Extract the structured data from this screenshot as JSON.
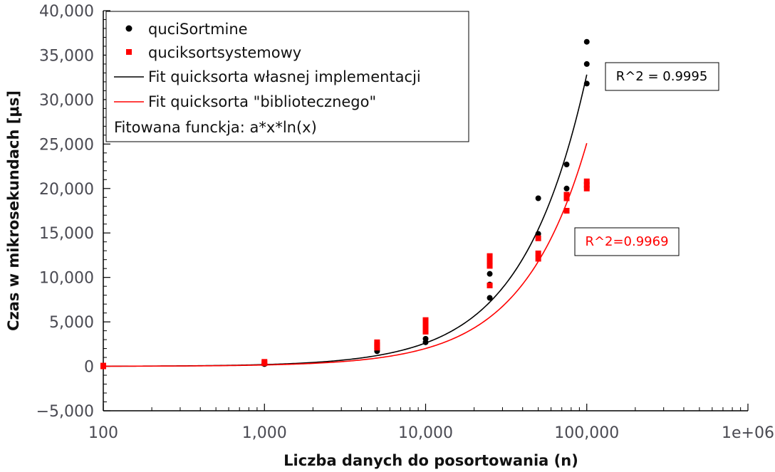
{
  "chart_data": {
    "type": "scatter",
    "x_scale": "log",
    "xlim": [
      100,
      1000000
    ],
    "ylim": [
      -5000,
      40000
    ],
    "xlabel": "Liczba danych do posortowania (n)",
    "ylabel": "Czas w mikrosekundach [μs]",
    "x_ticks": [
      {
        "value": 100,
        "label": "100"
      },
      {
        "value": 1000,
        "label": "1,000"
      },
      {
        "value": 10000,
        "label": "10,000"
      },
      {
        "value": 100000,
        "label": "100,000"
      },
      {
        "value": 1000000,
        "label": "1e+06"
      }
    ],
    "y_ticks": [
      {
        "value": -5000,
        "label": "−5,000"
      },
      {
        "value": 0,
        "label": "0"
      },
      {
        "value": 5000,
        "label": "5,000"
      },
      {
        "value": 10000,
        "label": "10,000"
      },
      {
        "value": 15000,
        "label": "15,000"
      },
      {
        "value": 20000,
        "label": "20,000"
      },
      {
        "value": 25000,
        "label": "25,000"
      },
      {
        "value": 30000,
        "label": "30,000"
      },
      {
        "value": 35000,
        "label": "35,000"
      },
      {
        "value": 40000,
        "label": "40,000"
      }
    ],
    "grid": false,
    "legend_position": "top-left",
    "series": [
      {
        "name": "quciSortmine",
        "kind": "points",
        "marker": "circle",
        "color": "#000000",
        "points": [
          [
            100,
            0
          ],
          [
            100,
            30
          ],
          [
            1000,
            250
          ],
          [
            1000,
            300
          ],
          [
            5000,
            1700
          ],
          [
            5000,
            1800
          ],
          [
            5000,
            2000
          ],
          [
            10000,
            2700
          ],
          [
            10000,
            3100
          ],
          [
            10000,
            4000
          ],
          [
            10000,
            4400
          ],
          [
            25000,
            7700
          ],
          [
            25000,
            9200
          ],
          [
            25000,
            10400
          ],
          [
            50000,
            14900
          ],
          [
            50000,
            18900
          ],
          [
            75000,
            20000
          ],
          [
            75000,
            22700
          ],
          [
            100000,
            31800
          ],
          [
            100000,
            34000
          ],
          [
            100000,
            36500
          ]
        ]
      },
      {
        "name": "quciksortsystemowy",
        "kind": "points",
        "marker": "square",
        "color": "#ff0000",
        "points": [
          [
            100,
            0
          ],
          [
            100,
            80
          ],
          [
            1000,
            350
          ],
          [
            1000,
            500
          ],
          [
            5000,
            2100
          ],
          [
            5000,
            2400
          ],
          [
            5000,
            2700
          ],
          [
            10000,
            3900
          ],
          [
            10000,
            4300
          ],
          [
            10000,
            4700
          ],
          [
            10000,
            5200
          ],
          [
            25000,
            9100
          ],
          [
            25000,
            11300
          ],
          [
            25000,
            11800
          ],
          [
            25000,
            12400
          ],
          [
            50000,
            12100
          ],
          [
            50000,
            12700
          ],
          [
            50000,
            14400
          ],
          [
            75000,
            17500
          ],
          [
            75000,
            18900
          ],
          [
            75000,
            19300
          ],
          [
            100000,
            20000
          ],
          [
            100000,
            20400
          ],
          [
            100000,
            20800
          ]
        ]
      },
      {
        "name": "Fit quicksorta własnej implementacji",
        "kind": "fit",
        "color": "#000000",
        "formula": "a*x*ln(x)",
        "a": 0.0285,
        "x_range": [
          100,
          100000
        ]
      },
      {
        "name": "Fit quicksorta \"bibliotecznego\"",
        "kind": "fit",
        "color": "#ff0000",
        "formula": "a*x*ln(x)",
        "a": 0.0218,
        "x_range": [
          100,
          100000
        ]
      }
    ],
    "legend_note": "Fitowana funckja: a*x*ln(x)",
    "annotations": [
      {
        "text": "R^2 = 0.9995",
        "color": "#000000",
        "boxed": true
      },
      {
        "text": "R^2=0.9969",
        "color": "#ff0000",
        "boxed": true
      }
    ]
  }
}
